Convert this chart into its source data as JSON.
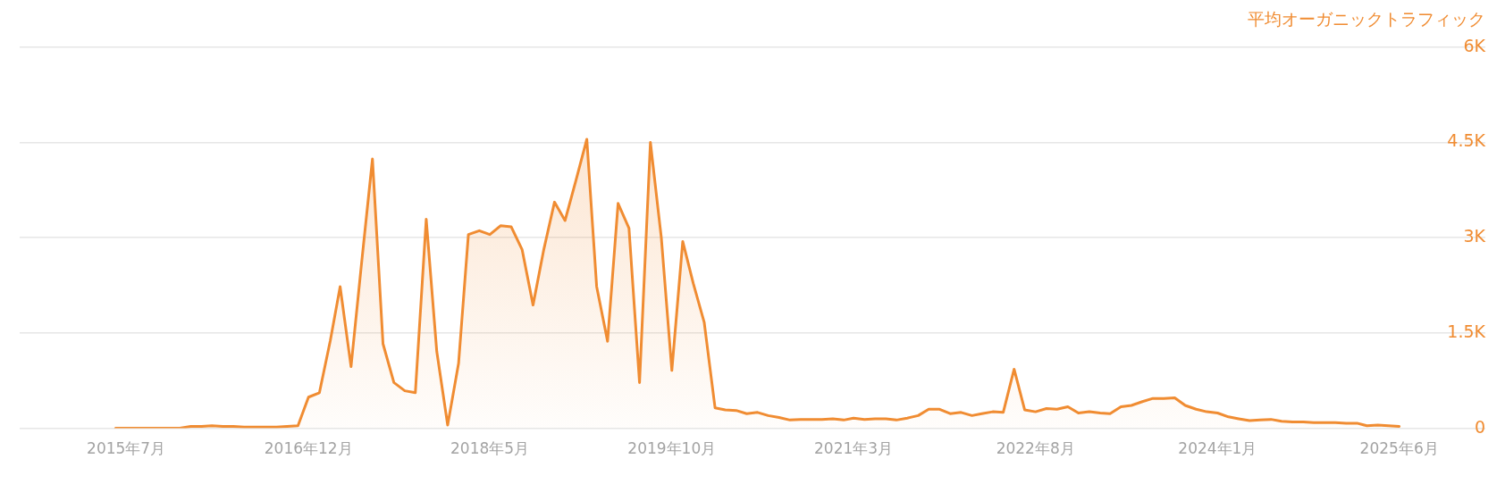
{
  "chart_data": {
    "type": "area",
    "ylabel": "平均オーガニックトラフィック",
    "x": [
      "2015-06",
      "2015-07",
      "2015-08",
      "2015-09",
      "2015-10",
      "2015-11",
      "2015-12",
      "2016-01",
      "2016-02",
      "2016-03",
      "2016-04",
      "2016-05",
      "2016-06",
      "2016-07",
      "2016-08",
      "2016-09",
      "2016-10",
      "2016-11",
      "2016-12",
      "2017-01",
      "2017-02",
      "2017-03",
      "2017-04",
      "2017-05",
      "2017-06",
      "2017-07",
      "2017-08",
      "2017-09",
      "2017-10",
      "2017-11",
      "2017-12",
      "2018-01",
      "2018-02",
      "2018-03",
      "2018-04",
      "2018-05",
      "2018-06",
      "2018-07",
      "2018-08",
      "2018-09",
      "2018-10",
      "2018-11",
      "2018-12",
      "2019-01",
      "2019-02",
      "2019-03",
      "2019-04",
      "2019-05",
      "2019-06",
      "2019-07",
      "2019-08",
      "2019-09",
      "2019-10",
      "2019-11",
      "2019-12",
      "2020-01",
      "2020-02",
      "2020-03",
      "2020-04",
      "2020-05",
      "2020-06",
      "2020-07",
      "2020-08",
      "2020-09",
      "2020-10",
      "2020-11",
      "2020-12",
      "2021-01",
      "2021-02",
      "2021-03",
      "2021-04",
      "2021-05",
      "2021-06",
      "2021-07",
      "2021-08",
      "2021-09",
      "2021-10",
      "2021-11",
      "2021-12",
      "2022-01",
      "2022-02",
      "2022-03",
      "2022-04",
      "2022-05",
      "2022-06",
      "2022-07",
      "2022-08",
      "2022-09",
      "2022-10",
      "2022-11",
      "2022-12",
      "2023-01",
      "2023-02",
      "2023-03",
      "2023-04",
      "2023-05",
      "2023-06",
      "2023-07",
      "2023-08",
      "2023-09",
      "2023-10",
      "2023-11",
      "2023-12",
      "2024-01",
      "2024-02",
      "2024-03",
      "2024-04",
      "2024-05",
      "2024-06",
      "2024-07",
      "2024-08",
      "2024-09",
      "2024-10",
      "2024-11",
      "2024-12",
      "2025-01",
      "2025-02",
      "2025-03",
      "2025-04",
      "2025-05",
      "2025-06"
    ],
    "series": [
      {
        "color": "#f08c32",
        "values": [
          0,
          0,
          0,
          0,
          0,
          0,
          0,
          30,
          30,
          40,
          30,
          30,
          20,
          20,
          20,
          20,
          30,
          40,
          490,
          560,
          1380,
          2230,
          970,
          2600,
          4240,
          1330,
          720,
          590,
          560,
          3290,
          1210,
          50,
          1020,
          3050,
          3110,
          3050,
          3190,
          3170,
          2810,
          1940,
          2800,
          3560,
          3270,
          3900,
          4550,
          2230,
          1370,
          3540,
          3150,
          720,
          4500,
          3000,
          910,
          2940,
          2280,
          1670,
          320,
          290,
          280,
          230,
          250,
          200,
          170,
          130,
          140,
          140,
          140,
          150,
          130,
          160,
          140,
          150,
          150,
          130,
          160,
          200,
          300,
          300,
          230,
          250,
          200,
          230,
          260,
          250,
          930,
          290,
          260,
          310,
          300,
          340,
          240,
          260,
          240,
          230,
          340,
          360,
          420,
          470,
          470,
          480,
          360,
          300,
          260,
          240,
          180,
          150,
          120,
          130,
          140,
          110,
          100,
          100,
          90,
          90,
          90,
          80,
          80,
          40,
          50,
          40,
          30
        ]
      }
    ],
    "xlim": [
      "2014-09",
      "2026-02"
    ],
    "xticks": [
      {
        "value": "2015-07",
        "label": "2015年7月"
      },
      {
        "value": "2016-12",
        "label": "2016年12月"
      },
      {
        "value": "2018-05",
        "label": "2018年5月"
      },
      {
        "value": "2019-10",
        "label": "2019年10月"
      },
      {
        "value": "2021-03",
        "label": "2021年3月"
      },
      {
        "value": "2022-08",
        "label": "2022年8月"
      },
      {
        "value": "2024-01",
        "label": "2024年1月"
      },
      {
        "value": "2025-06",
        "label": "2025年6月"
      }
    ],
    "ylim": [
      0,
      6000
    ],
    "yticks": [
      0,
      {
        "value": 1500,
        "label": "1.5K"
      },
      {
        "value": 3000,
        "label": "3K"
      },
      {
        "value": 4500,
        "label": "4.5K"
      },
      {
        "value": 6000,
        "label": "6K"
      }
    ],
    "grid": "y",
    "marker": "none"
  }
}
